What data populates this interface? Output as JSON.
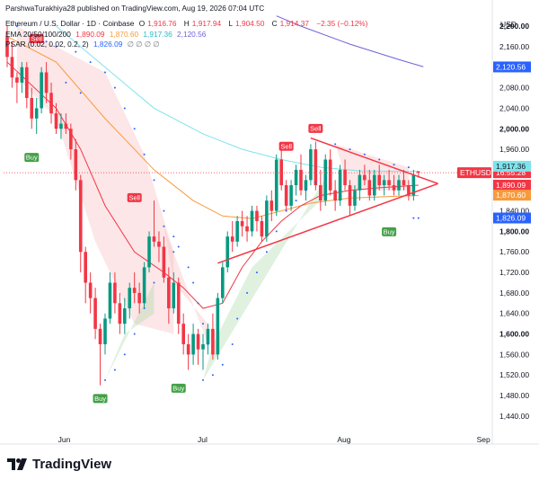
{
  "credit": "ParshwaTurakhiya28 published on TradingView.com, Aug 19, 2026 07:04 UTC",
  "header": {
    "symbol": "Ethereum / U.S. Dollar · 1D · Coinbase",
    "open_label": "O",
    "open": "1,916.76",
    "high_label": "H",
    "high": "1,917.94",
    "low_label": "L",
    "low": "1,904.50",
    "close_label": "C",
    "close": "1,914.37",
    "change": "−2.35 (−0.12%)",
    "ema_label": "EMA 20/50/100/200",
    "ema_values": [
      "1,890.09",
      "1,870.60",
      "1,917.36",
      "2,120.56"
    ],
    "psar_label": "PSAR (0.02, 0.02, 0.2, 2)",
    "psar_value": "1,826.09",
    "psar_empty": "∅ ∅ ∅ ∅"
  },
  "logo_text": "TradingView",
  "colors": {
    "up": "#089981",
    "down": "#f23645",
    "ema20": "#f23645",
    "ema50": "#f89a3c",
    "ema100": "#7fe3eb",
    "ema200": "#6c63d8",
    "psar": "#2962ff",
    "buy": "#43a047",
    "sell": "#f23645"
  },
  "chart_data": {
    "type": "candlestick",
    "currency": "USD",
    "x_labels": [
      "Jun",
      "Jul",
      "Aug",
      "Sep"
    ],
    "y_ticks": [
      1440,
      1480,
      1520,
      1560,
      1600,
      1640,
      1680,
      1720,
      1760,
      1800,
      1840,
      1880,
      1920,
      1960,
      2000,
      2040,
      2080,
      2120,
      2160,
      2200
    ],
    "y_tick_labels": [
      "1,440.00",
      "1,480.00",
      "1,520.00",
      "1,560.00",
      "1,600.00",
      "1,640.00",
      "1,680.00",
      "1,720.00",
      "1,760.00",
      "1,800.00",
      "1,840.00",
      "1,880.00",
      "1,920.00",
      "1,960.00",
      "2,000.00",
      "2,040.00",
      "2,080.00",
      "2,120.00",
      "2,160.00",
      "2,200.00"
    ],
    "y_bold_ticks": [
      1600,
      1800,
      2000,
      2200
    ],
    "ylim": [
      1410,
      2230
    ],
    "candles": [
      [
        2180,
        2200,
        2120,
        2140
      ],
      [
        2140,
        2170,
        2080,
        2100
      ],
      [
        2100,
        2110,
        2050,
        2090
      ],
      [
        2090,
        2130,
        2070,
        2120
      ],
      [
        2120,
        2130,
        2040,
        2060
      ],
      [
        2060,
        2080,
        2000,
        2020
      ],
      [
        2020,
        2060,
        1990,
        2040
      ],
      [
        2040,
        2120,
        2030,
        2110
      ],
      [
        2110,
        2130,
        2050,
        2070
      ],
      [
        2070,
        2090,
        2010,
        2030
      ],
      [
        2030,
        2050,
        1990,
        2000
      ],
      [
        2000,
        2030,
        1980,
        2010
      ],
      [
        2010,
        2030,
        1990,
        2000
      ],
      [
        2000,
        2010,
        1940,
        1960
      ],
      [
        1960,
        1980,
        1880,
        1900
      ],
      [
        1900,
        1910,
        1720,
        1760
      ],
      [
        1760,
        1770,
        1660,
        1700
      ],
      [
        1700,
        1720,
        1640,
        1670
      ],
      [
        1670,
        1690,
        1590,
        1610
      ],
      [
        1610,
        1620,
        1500,
        1580
      ],
      [
        1580,
        1640,
        1560,
        1630
      ],
      [
        1630,
        1720,
        1620,
        1700
      ],
      [
        1700,
        1720,
        1640,
        1660
      ],
      [
        1660,
        1680,
        1600,
        1620
      ],
      [
        1620,
        1670,
        1600,
        1650
      ],
      [
        1650,
        1700,
        1630,
        1690
      ],
      [
        1690,
        1720,
        1660,
        1680
      ],
      [
        1680,
        1700,
        1640,
        1660
      ],
      [
        1660,
        1740,
        1650,
        1730
      ],
      [
        1730,
        1800,
        1720,
        1790
      ],
      [
        1790,
        1860,
        1770,
        1780
      ],
      [
        1780,
        1800,
        1740,
        1770
      ],
      [
        1770,
        1790,
        1700,
        1710
      ],
      [
        1710,
        1730,
        1620,
        1650
      ],
      [
        1650,
        1720,
        1640,
        1700
      ],
      [
        1700,
        1710,
        1600,
        1620
      ],
      [
        1620,
        1640,
        1560,
        1580
      ],
      [
        1580,
        1600,
        1530,
        1560
      ],
      [
        1560,
        1620,
        1540,
        1600
      ],
      [
        1600,
        1610,
        1540,
        1570
      ],
      [
        1570,
        1600,
        1530,
        1580
      ],
      [
        1580,
        1620,
        1560,
        1610
      ],
      [
        1610,
        1640,
        1550,
        1560
      ],
      [
        1560,
        1680,
        1550,
        1670
      ],
      [
        1670,
        1740,
        1660,
        1730
      ],
      [
        1730,
        1800,
        1720,
        1790
      ],
      [
        1790,
        1820,
        1760,
        1780
      ],
      [
        1780,
        1830,
        1770,
        1820
      ],
      [
        1820,
        1840,
        1790,
        1810
      ],
      [
        1810,
        1830,
        1780,
        1800
      ],
      [
        1800,
        1850,
        1790,
        1840
      ],
      [
        1840,
        1850,
        1800,
        1820
      ],
      [
        1820,
        1830,
        1780,
        1790
      ],
      [
        1790,
        1870,
        1780,
        1860
      ],
      [
        1860,
        1880,
        1820,
        1840
      ],
      [
        1840,
        1950,
        1830,
        1940
      ],
      [
        1940,
        1960,
        1880,
        1890
      ],
      [
        1890,
        1900,
        1840,
        1850
      ],
      [
        1850,
        1900,
        1840,
        1890
      ],
      [
        1890,
        1930,
        1870,
        1920
      ],
      [
        1920,
        1950,
        1870,
        1880
      ],
      [
        1880,
        1910,
        1860,
        1900
      ],
      [
        1900,
        1970,
        1890,
        1960
      ],
      [
        1960,
        1975,
        1880,
        1890
      ],
      [
        1890,
        1920,
        1840,
        1860
      ],
      [
        1860,
        1950,
        1850,
        1940
      ],
      [
        1940,
        1960,
        1870,
        1880
      ],
      [
        1880,
        1900,
        1840,
        1860
      ],
      [
        1860,
        1930,
        1850,
        1920
      ],
      [
        1920,
        1940,
        1880,
        1890
      ],
      [
        1890,
        1900,
        1830,
        1850
      ],
      [
        1850,
        1890,
        1840,
        1880
      ],
      [
        1880,
        1920,
        1860,
        1910
      ],
      [
        1910,
        1930,
        1890,
        1900
      ],
      [
        1900,
        1920,
        1860,
        1870
      ],
      [
        1870,
        1920,
        1860,
        1910
      ],
      [
        1910,
        1930,
        1880,
        1890
      ],
      [
        1890,
        1910,
        1870,
        1900
      ],
      [
        1900,
        1920,
        1880,
        1890
      ],
      [
        1890,
        1910,
        1870,
        1880
      ],
      [
        1880,
        1910,
        1870,
        1900
      ],
      [
        1900,
        1920,
        1880,
        1890
      ],
      [
        1890,
        1900,
        1860,
        1870
      ],
      [
        1870,
        1920,
        1860,
        1910
      ],
      [
        1916.76,
        1917.94,
        1904.5,
        1914.37
      ]
    ],
    "ema20": [
      [
        0,
        2130
      ],
      [
        10,
        2040
      ],
      [
        15,
        1960
      ],
      [
        20,
        1850
      ],
      [
        26,
        1760
      ],
      [
        32,
        1720
      ],
      [
        36,
        1690
      ],
      [
        40,
        1650
      ],
      [
        44,
        1660
      ],
      [
        48,
        1730
      ],
      [
        52,
        1780
      ],
      [
        56,
        1820
      ],
      [
        60,
        1850
      ],
      [
        64,
        1870
      ],
      [
        70,
        1880
      ],
      [
        76,
        1885
      ],
      [
        84,
        1890
      ]
    ],
    "ema50": [
      [
        0,
        2180
      ],
      [
        10,
        2130
      ],
      [
        20,
        2020
      ],
      [
        30,
        1920
      ],
      [
        38,
        1860
      ],
      [
        44,
        1830
      ],
      [
        50,
        1825
      ],
      [
        56,
        1840
      ],
      [
        62,
        1855
      ],
      [
        70,
        1865
      ],
      [
        78,
        1868
      ],
      [
        84,
        1870
      ]
    ],
    "ema100": [
      [
        10,
        2200
      ],
      [
        20,
        2120
      ],
      [
        30,
        2040
      ],
      [
        40,
        1990
      ],
      [
        48,
        1960
      ],
      [
        56,
        1940
      ],
      [
        64,
        1925
      ],
      [
        72,
        1918
      ],
      [
        80,
        1917
      ],
      [
        84,
        1917
      ]
    ],
    "ema200": [
      [
        55,
        2220
      ],
      [
        60,
        2200
      ],
      [
        70,
        2165
      ],
      [
        80,
        2135
      ],
      [
        85,
        2121
      ]
    ],
    "psar": [
      [
        2,
        2200
      ],
      [
        5,
        2180
      ],
      [
        8,
        2170
      ],
      [
        10,
        2160
      ],
      [
        14,
        2150
      ],
      [
        17,
        2130
      ],
      [
        20,
        2110
      ],
      [
        22,
        2080
      ],
      [
        24,
        2040
      ],
      [
        26,
        2000
      ],
      [
        28,
        1950
      ],
      [
        30,
        1900
      ],
      [
        32,
        1840
      ],
      [
        34,
        1760
      ],
      [
        15,
        2070
      ],
      [
        12,
        2090
      ],
      [
        20,
        1510
      ],
      [
        22,
        1530
      ],
      [
        24,
        1560
      ],
      [
        26,
        1600
      ],
      [
        28,
        1650
      ],
      [
        30,
        1700
      ],
      [
        32,
        1810
      ],
      [
        34,
        1790
      ],
      [
        35,
        1770
      ],
      [
        37,
        1730
      ],
      [
        38,
        1700
      ],
      [
        39,
        1660
      ],
      [
        40,
        1620
      ],
      [
        41,
        1580
      ],
      [
        40,
        1510
      ],
      [
        42,
        1520
      ],
      [
        44,
        1540
      ],
      [
        46,
        1580
      ],
      [
        47,
        1630
      ],
      [
        49,
        1680
      ],
      [
        51,
        1720
      ],
      [
        53,
        1760
      ],
      [
        55,
        1800
      ],
      [
        57,
        1840
      ],
      [
        59,
        1860
      ],
      [
        61,
        1880
      ],
      [
        63,
        1895
      ],
      [
        65,
        1905
      ],
      [
        67,
        1970
      ],
      [
        70,
        1960
      ],
      [
        73,
        1950
      ],
      [
        76,
        1940
      ],
      [
        79,
        1930
      ],
      [
        82,
        1925
      ],
      [
        83,
        1826
      ],
      [
        84,
        1826
      ]
    ],
    "signals": [
      {
        "label": "Sell",
        "i": 6,
        "price": 2160,
        "side": "above"
      },
      {
        "label": "Buy",
        "i": 5,
        "price": 1960,
        "side": "below"
      },
      {
        "label": "Sell",
        "i": 26,
        "price": 1850,
        "side": "above"
      },
      {
        "label": "Buy",
        "i": 19,
        "price": 1490,
        "side": "below"
      },
      {
        "label": "Buy",
        "i": 35,
        "price": 1510,
        "side": "below"
      },
      {
        "label": "Sell",
        "i": 57,
        "price": 1950,
        "side": "above"
      },
      {
        "label": "Sell",
        "i": 63,
        "price": 1985,
        "side": "above"
      },
      {
        "label": "Buy",
        "i": 78,
        "price": 1815,
        "side": "below"
      }
    ],
    "triangle": {
      "top_start": [
        62,
        1982
      ],
      "bottom_start": [
        43,
        1738
      ],
      "apex": [
        88,
        1893
      ]
    },
    "price_labels": [
      {
        "text": "2,120.56",
        "price": 2120.56,
        "bg": "#2962ff",
        "fg": "#ffffff"
      },
      {
        "text": "1,917.36",
        "price": 1927,
        "bg": "#7fe3eb",
        "fg": "#131722"
      },
      {
        "text": "1,890.09",
        "price": 1890.09,
        "bg": "#f23645",
        "fg": "#ffffff"
      },
      {
        "text": "1,870.60",
        "price": 1870.6,
        "bg": "#f89a3c",
        "fg": "#ffffff"
      },
      {
        "text": "1,826.09",
        "price": 1826.09,
        "bg": "#2962ff",
        "fg": "#ffffff"
      }
    ],
    "last_price": {
      "symbol": "ETHUSD",
      "price_text": "1,914.37",
      "countdown": "16:55:28",
      "price": 1914.37
    }
  }
}
